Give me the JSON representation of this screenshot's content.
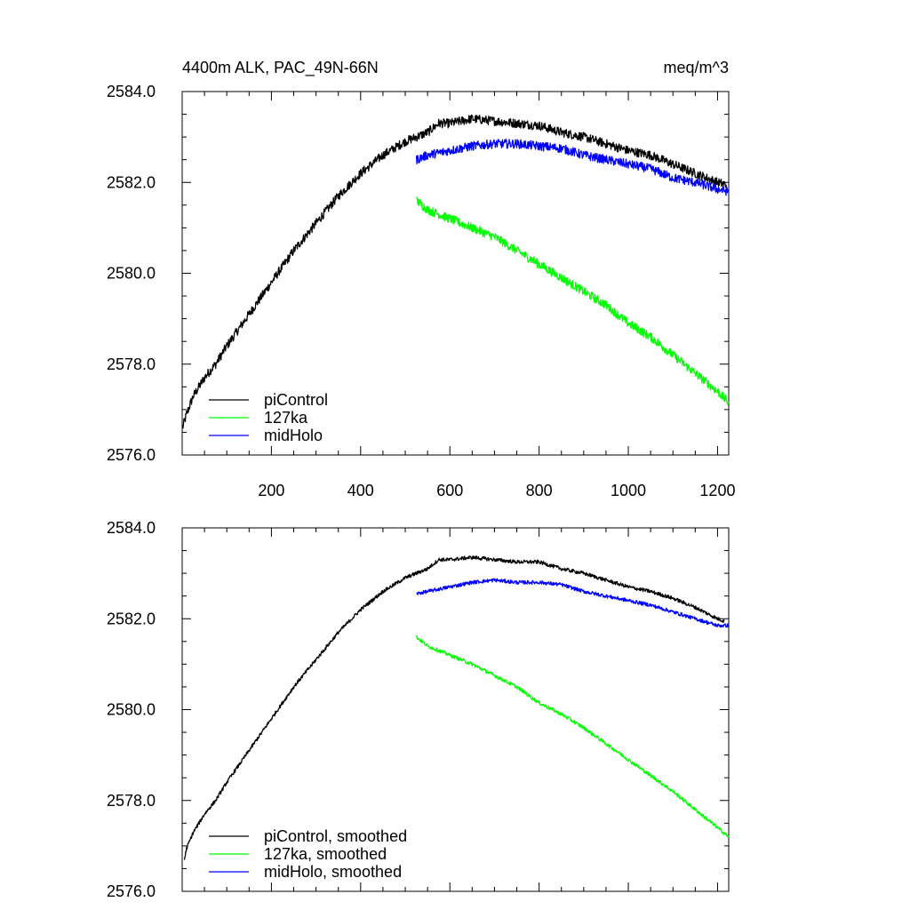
{
  "chart_data": [
    {
      "type": "line",
      "title_left": "4400m ALK, PAC_49N-66N",
      "title_right": "meq/m^3",
      "xlabel": "",
      "ylabel": "",
      "xlim": [
        0,
        1225
      ],
      "ylim": [
        2576.0,
        2584.0
      ],
      "yticks": [
        2576.0,
        2578.0,
        2580.0,
        2582.0,
        2584.0
      ],
      "ytick_labels": [
        "2576.0",
        "2578.0",
        "2580.0",
        "2582.0",
        "2584.0"
      ],
      "xticks": [
        200,
        400,
        600,
        800,
        1000,
        1200
      ],
      "xtick_labels": [
        "200",
        "400",
        "600",
        "800",
        "1000",
        "1200"
      ],
      "noise": 0.1,
      "legend": [
        "piControl",
        "127ka",
        "midHolo"
      ],
      "series": [
        {
          "name": "piControl",
          "color": "#000000",
          "x": [
            1,
            10,
            25,
            50,
            75,
            100,
            150,
            200,
            250,
            300,
            350,
            400,
            450,
            500,
            550,
            575,
            600,
            650,
            700,
            750,
            800,
            850,
            900,
            950,
            1000,
            1050,
            1100,
            1150,
            1200,
            1220
          ],
          "y": [
            2576.6,
            2576.9,
            2577.3,
            2577.7,
            2578.0,
            2578.4,
            2579.1,
            2579.8,
            2580.5,
            2581.1,
            2581.7,
            2582.2,
            2582.6,
            2582.9,
            2583.1,
            2583.3,
            2583.3,
            2583.4,
            2583.35,
            2583.3,
            2583.25,
            2583.1,
            2583.0,
            2582.85,
            2582.7,
            2582.6,
            2582.4,
            2582.2,
            2582.0,
            2581.95
          ]
        },
        {
          "name": "127ka",
          "color": "#00ff00",
          "x": [
            525,
            550,
            600,
            650,
            700,
            750,
            800,
            850,
            900,
            950,
            1000,
            1050,
            1100,
            1150,
            1200,
            1225
          ],
          "y": [
            2581.6,
            2581.4,
            2581.2,
            2581.0,
            2580.8,
            2580.5,
            2580.2,
            2579.9,
            2579.6,
            2579.3,
            2578.9,
            2578.6,
            2578.2,
            2577.8,
            2577.4,
            2577.15
          ]
        },
        {
          "name": "midHolo",
          "color": "#0000ff",
          "x": [
            525,
            550,
            600,
            650,
            700,
            750,
            800,
            850,
            900,
            950,
            1000,
            1050,
            1100,
            1150,
            1200,
            1225
          ],
          "y": [
            2582.5,
            2582.6,
            2582.7,
            2582.8,
            2582.85,
            2582.85,
            2582.8,
            2582.75,
            2582.6,
            2582.5,
            2582.4,
            2582.3,
            2582.1,
            2582.0,
            2581.85,
            2581.8
          ]
        }
      ]
    },
    {
      "type": "line",
      "xlabel": "",
      "ylabel": "",
      "xlim": [
        0,
        1225
      ],
      "ylim": [
        2576.0,
        2584.0
      ],
      "yticks": [
        2576.0,
        2578.0,
        2580.0,
        2582.0,
        2584.0
      ],
      "ytick_labels": [
        "2576.0",
        "2578.0",
        "2580.0",
        "2582.0",
        "2584.0"
      ],
      "xticks": [
        200,
        400,
        600,
        800,
        1000,
        1200
      ],
      "xtick_labels": [],
      "noise": 0.04,
      "legend": [
        "piControl, smoothed",
        "127ka, smoothed",
        "midHolo, smoothed"
      ],
      "series": [
        {
          "name": "piControl, smoothed",
          "color": "#000000",
          "x": [
            5,
            10,
            25,
            50,
            75,
            100,
            150,
            200,
            250,
            300,
            350,
            400,
            450,
            500,
            550,
            575,
            600,
            650,
            700,
            750,
            800,
            850,
            900,
            950,
            1000,
            1050,
            1100,
            1150,
            1200,
            1215
          ],
          "y": [
            2576.7,
            2576.95,
            2577.3,
            2577.7,
            2578.0,
            2578.4,
            2579.1,
            2579.8,
            2580.5,
            2581.1,
            2581.7,
            2582.2,
            2582.6,
            2582.9,
            2583.1,
            2583.3,
            2583.3,
            2583.35,
            2583.3,
            2583.25,
            2583.25,
            2583.1,
            2583.0,
            2582.85,
            2582.7,
            2582.6,
            2582.45,
            2582.25,
            2582.0,
            2581.95
          ]
        },
        {
          "name": "127ka, smoothed",
          "color": "#00ff00",
          "x": [
            525,
            550,
            600,
            650,
            700,
            750,
            800,
            850,
            900,
            950,
            1000,
            1050,
            1100,
            1150,
            1200,
            1225
          ],
          "y": [
            2581.6,
            2581.4,
            2581.2,
            2581.0,
            2580.75,
            2580.5,
            2580.15,
            2579.9,
            2579.6,
            2579.25,
            2578.9,
            2578.55,
            2578.2,
            2577.8,
            2577.4,
            2577.2
          ]
        },
        {
          "name": "midHolo, smoothed",
          "color": "#0000ff",
          "x": [
            525,
            550,
            600,
            650,
            700,
            750,
            800,
            850,
            900,
            950,
            1000,
            1050,
            1100,
            1150,
            1200,
            1225
          ],
          "y": [
            2582.55,
            2582.6,
            2582.7,
            2582.8,
            2582.85,
            2582.8,
            2582.8,
            2582.75,
            2582.6,
            2582.5,
            2582.4,
            2582.3,
            2582.15,
            2582.0,
            2581.85,
            2581.85
          ]
        }
      ]
    }
  ]
}
